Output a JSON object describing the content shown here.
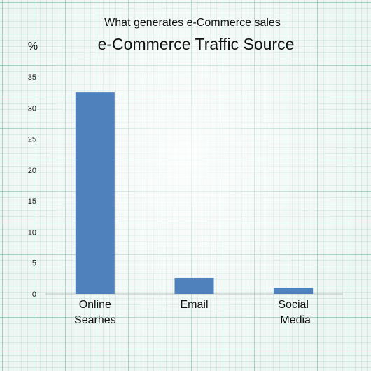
{
  "chart_data": {
    "type": "bar",
    "subtitle": "What generates e-Commerce sales",
    "title": "e-Commerce Traffic Source",
    "ylabel": "%",
    "xlabel": "",
    "categories": [
      "Online Searhes",
      "Email",
      "Social Media"
    ],
    "category_lines": [
      [
        "Online",
        "Searhes"
      ],
      [
        "Email"
      ],
      [
        "Social",
        "Media"
      ]
    ],
    "values": [
      32.5,
      2.6,
      1.0
    ],
    "ylim": [
      0,
      35
    ],
    "yticks": [
      0,
      5,
      10,
      15,
      20,
      25,
      30,
      35
    ],
    "bar_color": "#4f81bd",
    "grid": false,
    "legend": "none"
  }
}
